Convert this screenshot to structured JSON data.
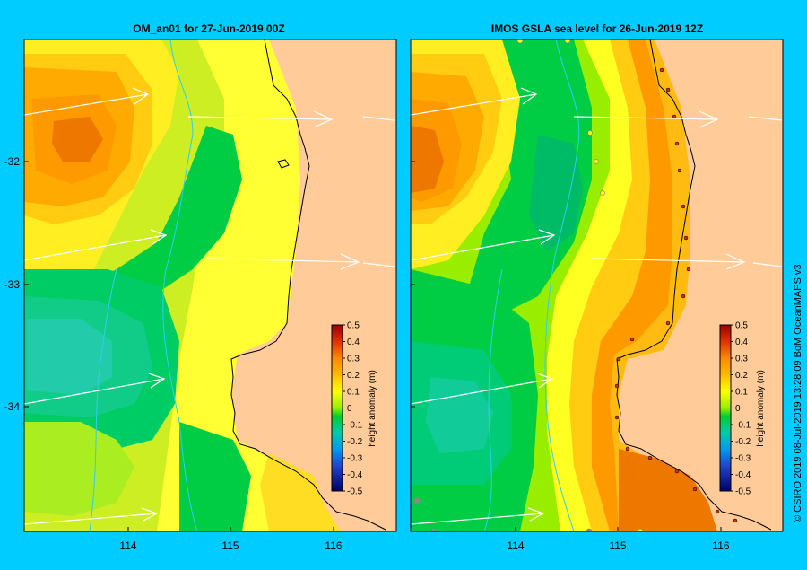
{
  "panels": [
    {
      "title": "OM_an01  for 27-Jun-2019 00Z"
    },
    {
      "title": "IMOS GSLA sea level  for 26-Jun-2019 12Z"
    }
  ],
  "axes": {
    "lat_ticks": [
      "-32",
      "-33",
      "-34"
    ],
    "lon_ticks": [
      "114",
      "115",
      "116"
    ]
  },
  "colorbar": {
    "label": "height anomaly (m)",
    "ticks": [
      "0.5",
      "0.4",
      "0.3",
      "0.2",
      "0.1",
      "0",
      "-0.1",
      "-0.2",
      "-0.3",
      "-0.4",
      "-0.5"
    ]
  },
  "credit": "© CSIRO 2019   08-Jul-2019 13:28:09 BoM OceanMAPS v3",
  "colors": {
    "land": "#ffcc99",
    "background": "#00ccff",
    "coast": "#000000",
    "depth_contour": "#33ccee",
    "current_arrows": "#ffffff"
  }
}
